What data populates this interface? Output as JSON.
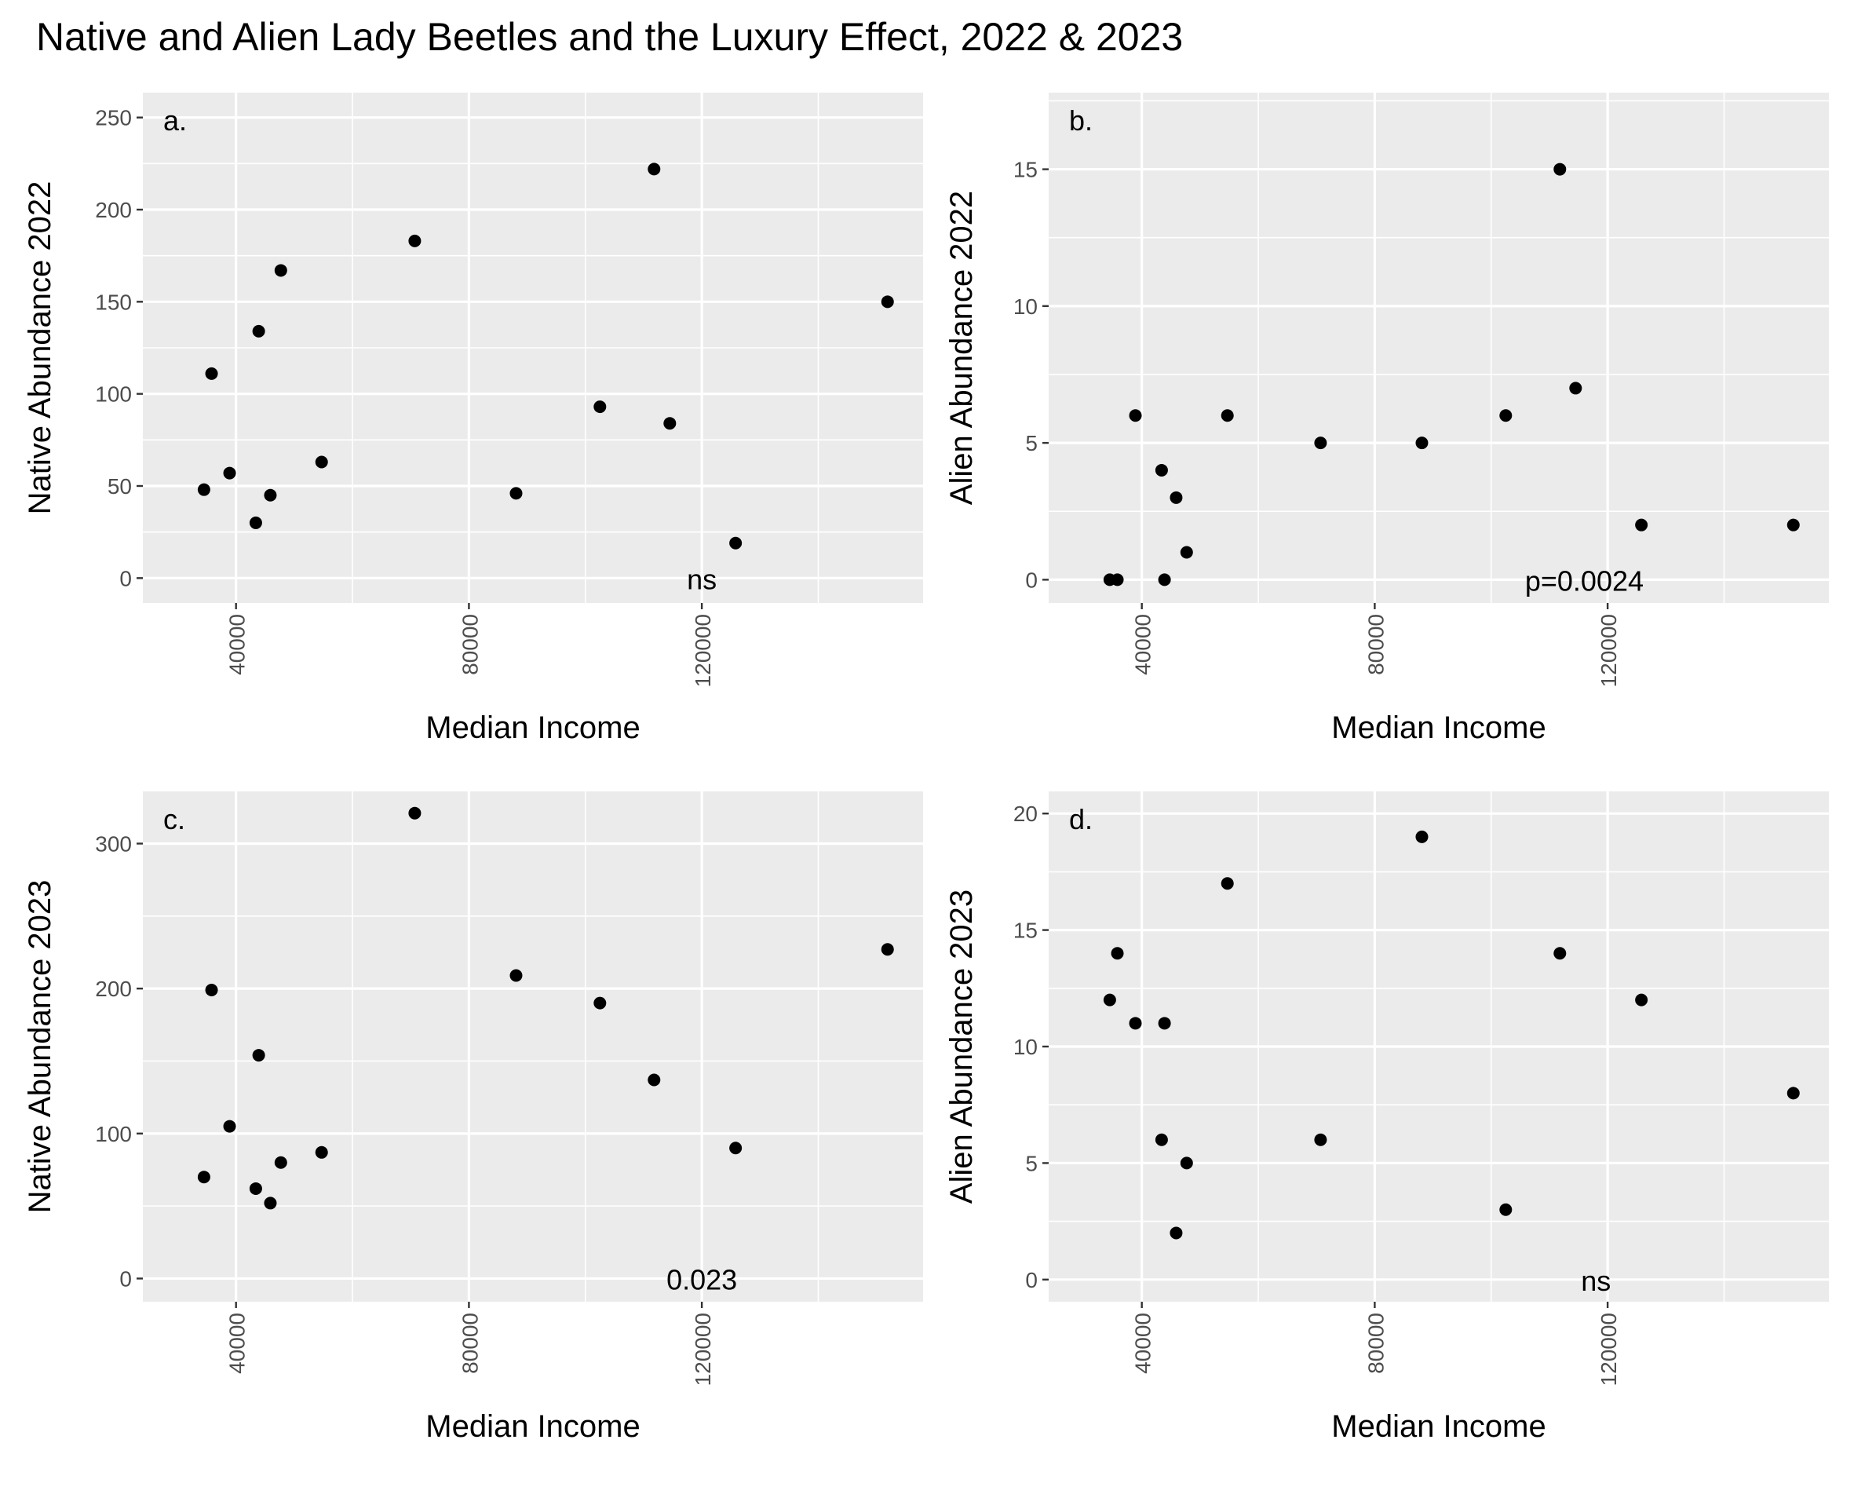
{
  "figure": {
    "title": "Native and Alien Lady Beetles and the Luxury Effect, 2022 & 2023"
  },
  "colors": {
    "panel_background": "#ebebeb",
    "grid": "#ffffff",
    "point": "#000000",
    "axis_text": "#4d4d4d"
  },
  "chart_data": [
    {
      "type": "scatter",
      "panel_label": "a.",
      "xlabel": "Median Income",
      "ylabel": "Native Abundance 2022",
      "xlim": [
        24000,
        158000
      ],
      "ylim": [
        -13.5,
        263.5
      ],
      "xticks": [
        40000,
        80000,
        120000
      ],
      "xtick_labels": [
        "40000",
        "80000",
        "120000"
      ],
      "yticks": [
        0,
        50,
        100,
        150,
        200,
        250
      ],
      "ytick_labels": [
        "0",
        "50",
        "100",
        "150",
        "200",
        "250"
      ],
      "annotation": "ns",
      "annotation_pos": [
        120000,
        0
      ],
      "points": [
        {
          "x": 34500,
          "y": 48
        },
        {
          "x": 35800,
          "y": 111
        },
        {
          "x": 38900,
          "y": 57
        },
        {
          "x": 43400,
          "y": 30
        },
        {
          "x": 43900,
          "y": 134
        },
        {
          "x": 45900,
          "y": 45
        },
        {
          "x": 47700,
          "y": 167
        },
        {
          "x": 54700,
          "y": 63
        },
        {
          "x": 70700,
          "y": 183
        },
        {
          "x": 88100,
          "y": 46
        },
        {
          "x": 102500,
          "y": 93
        },
        {
          "x": 111800,
          "y": 222
        },
        {
          "x": 114500,
          "y": 84
        },
        {
          "x": 125800,
          "y": 19
        },
        {
          "x": 151900,
          "y": 150
        }
      ]
    },
    {
      "type": "scatter",
      "panel_label": "b.",
      "xlabel": "Median Income",
      "ylabel": "Alien Abundance 2022",
      "xlim": [
        24000,
        158000
      ],
      "ylim": [
        -0.85,
        17.8
      ],
      "xticks": [
        40000,
        80000,
        120000
      ],
      "xtick_labels": [
        "40000",
        "80000",
        "120000"
      ],
      "yticks": [
        0,
        5,
        10,
        15
      ],
      "ytick_labels": [
        "0",
        "5",
        "10",
        "15"
      ],
      "annotation": "p=0.0024",
      "annotation_pos": [
        116000,
        0
      ],
      "points": [
        {
          "x": 34500,
          "y": 0
        },
        {
          "x": 35800,
          "y": 0
        },
        {
          "x": 38900,
          "y": 6
        },
        {
          "x": 43400,
          "y": 4
        },
        {
          "x": 43900,
          "y": 0
        },
        {
          "x": 45900,
          "y": 3
        },
        {
          "x": 47700,
          "y": 1
        },
        {
          "x": 54700,
          "y": 6
        },
        {
          "x": 70700,
          "y": 5
        },
        {
          "x": 88100,
          "y": 5
        },
        {
          "x": 102500,
          "y": 6
        },
        {
          "x": 111800,
          "y": 15
        },
        {
          "x": 114500,
          "y": 7
        },
        {
          "x": 125800,
          "y": 2
        },
        {
          "x": 151900,
          "y": 2
        }
      ]
    },
    {
      "type": "scatter",
      "panel_label": "c.",
      "xlabel": "Median Income",
      "ylabel": "Native Abundance 2023",
      "xlim": [
        24000,
        158000
      ],
      "ylim": [
        -16,
        336
      ],
      "xticks": [
        40000,
        80000,
        120000
      ],
      "xtick_labels": [
        "40000",
        "80000",
        "120000"
      ],
      "yticks": [
        0,
        100,
        200,
        300
      ],
      "ytick_labels": [
        "0",
        "100",
        "200",
        "300"
      ],
      "annotation": "0.023",
      "annotation_pos": [
        120000,
        0
      ],
      "points": [
        {
          "x": 34500,
          "y": 70
        },
        {
          "x": 35800,
          "y": 199
        },
        {
          "x": 38900,
          "y": 105
        },
        {
          "x": 43400,
          "y": 62
        },
        {
          "x": 43900,
          "y": 154
        },
        {
          "x": 45900,
          "y": 52
        },
        {
          "x": 47700,
          "y": 80
        },
        {
          "x": 54700,
          "y": 87
        },
        {
          "x": 70700,
          "y": 321
        },
        {
          "x": 88100,
          "y": 209
        },
        {
          "x": 102500,
          "y": 190
        },
        {
          "x": 111800,
          "y": 137
        },
        {
          "x": 125800,
          "y": 90
        },
        {
          "x": 151900,
          "y": 227
        }
      ]
    },
    {
      "type": "scatter",
      "panel_label": "d.",
      "xlabel": "Median Income",
      "ylabel": "Alien Abundance 2023",
      "xlim": [
        24000,
        158000
      ],
      "ylim": [
        -0.95,
        20.95
      ],
      "xticks": [
        40000,
        80000,
        120000
      ],
      "xtick_labels": [
        "40000",
        "80000",
        "120000"
      ],
      "yticks": [
        0,
        5,
        10,
        15,
        20
      ],
      "ytick_labels": [
        "0",
        "5",
        "10",
        "15",
        "20"
      ],
      "annotation": "ns",
      "annotation_pos": [
        118000,
        0
      ],
      "points": [
        {
          "x": 34500,
          "y": 12
        },
        {
          "x": 35800,
          "y": 14
        },
        {
          "x": 38900,
          "y": 11
        },
        {
          "x": 43400,
          "y": 6
        },
        {
          "x": 43900,
          "y": 11
        },
        {
          "x": 45900,
          "y": 2
        },
        {
          "x": 47700,
          "y": 5
        },
        {
          "x": 54700,
          "y": 17
        },
        {
          "x": 70700,
          "y": 6
        },
        {
          "x": 88100,
          "y": 19
        },
        {
          "x": 102500,
          "y": 3
        },
        {
          "x": 111800,
          "y": 14
        },
        {
          "x": 125800,
          "y": 12
        },
        {
          "x": 151900,
          "y": 8
        }
      ]
    }
  ]
}
